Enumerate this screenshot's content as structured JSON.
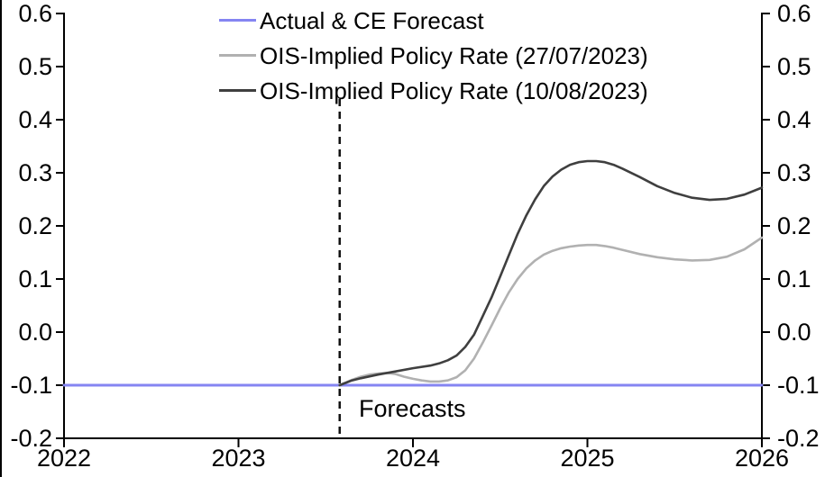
{
  "chart_data": {
    "type": "line",
    "title": "",
    "xlabel": "",
    "ylabel": "",
    "xlim": [
      2022,
      2026
    ],
    "ylim": [
      -0.2,
      0.6
    ],
    "grid": false,
    "x_ticks": [
      "2022",
      "2023",
      "2024",
      "2025",
      "2026"
    ],
    "x_tick_values": [
      2022,
      2023,
      2024,
      2025,
      2026
    ],
    "y_ticks": [
      "0.6",
      "0.5",
      "0.4",
      "0.3",
      "0.2",
      "0.1",
      "0.0",
      "-0.1",
      "-0.2"
    ],
    "y_tick_values": [
      0.6,
      0.5,
      0.4,
      0.3,
      0.2,
      0.1,
      0.0,
      -0.1,
      -0.2
    ],
    "y_axis_mirrored_right": true,
    "annotation": {
      "label": "Forecasts",
      "x": 2023.58
    },
    "forecast_line": {
      "style": "dashed",
      "x": 2023.58
    },
    "series": [
      {
        "name": "Actual & CE Forecast",
        "color": "#8585f2",
        "width": 3,
        "points": [
          [
            2022.0,
            -0.1
          ],
          [
            2026.0,
            -0.1
          ]
        ]
      },
      {
        "name": "OIS-Implied Policy Rate (27/07/2023)",
        "color": "#b1b1b1",
        "width": 2.6,
        "points": [
          [
            2023.58,
            -0.1
          ],
          [
            2023.65,
            -0.09
          ],
          [
            2023.7,
            -0.084
          ],
          [
            2023.75,
            -0.08
          ],
          [
            2023.8,
            -0.078
          ],
          [
            2023.85,
            -0.077
          ],
          [
            2023.9,
            -0.079
          ],
          [
            2023.95,
            -0.084
          ],
          [
            2024.0,
            -0.088
          ],
          [
            2024.05,
            -0.091
          ],
          [
            2024.1,
            -0.093
          ],
          [
            2024.15,
            -0.093
          ],
          [
            2024.2,
            -0.091
          ],
          [
            2024.25,
            -0.085
          ],
          [
            2024.3,
            -0.072
          ],
          [
            2024.35,
            -0.05
          ],
          [
            2024.4,
            -0.02
          ],
          [
            2024.45,
            0.012
          ],
          [
            2024.5,
            0.045
          ],
          [
            2024.55,
            0.075
          ],
          [
            2024.6,
            0.1
          ],
          [
            2024.65,
            0.12
          ],
          [
            2024.7,
            0.135
          ],
          [
            2024.75,
            0.146
          ],
          [
            2024.8,
            0.153
          ],
          [
            2024.85,
            0.158
          ],
          [
            2024.9,
            0.161
          ],
          [
            2024.95,
            0.163
          ],
          [
            2025.0,
            0.164
          ],
          [
            2025.05,
            0.164
          ],
          [
            2025.1,
            0.162
          ],
          [
            2025.15,
            0.159
          ],
          [
            2025.2,
            0.155
          ],
          [
            2025.3,
            0.147
          ],
          [
            2025.4,
            0.141
          ],
          [
            2025.5,
            0.137
          ],
          [
            2025.6,
            0.135
          ],
          [
            2025.7,
            0.136
          ],
          [
            2025.8,
            0.142
          ],
          [
            2025.9,
            0.156
          ],
          [
            2026.0,
            0.178
          ]
        ]
      },
      {
        "name": "OIS-Implied Policy Rate (10/08/2023)",
        "color": "#3f3f3f",
        "width": 2.6,
        "points": [
          [
            2023.58,
            -0.1
          ],
          [
            2023.65,
            -0.091
          ],
          [
            2023.7,
            -0.087
          ],
          [
            2023.8,
            -0.08
          ],
          [
            2023.9,
            -0.074
          ],
          [
            2024.0,
            -0.068
          ],
          [
            2024.1,
            -0.063
          ],
          [
            2024.15,
            -0.059
          ],
          [
            2024.2,
            -0.053
          ],
          [
            2024.25,
            -0.044
          ],
          [
            2024.3,
            -0.028
          ],
          [
            2024.35,
            -0.005
          ],
          [
            2024.4,
            0.03
          ],
          [
            2024.45,
            0.065
          ],
          [
            2024.5,
            0.105
          ],
          [
            2024.55,
            0.145
          ],
          [
            2024.6,
            0.185
          ],
          [
            2024.65,
            0.22
          ],
          [
            2024.7,
            0.25
          ],
          [
            2024.75,
            0.275
          ],
          [
            2024.8,
            0.293
          ],
          [
            2024.85,
            0.306
          ],
          [
            2024.9,
            0.315
          ],
          [
            2024.95,
            0.32
          ],
          [
            2025.0,
            0.322
          ],
          [
            2025.05,
            0.322
          ],
          [
            2025.1,
            0.32
          ],
          [
            2025.15,
            0.315
          ],
          [
            2025.2,
            0.308
          ],
          [
            2025.3,
            0.292
          ],
          [
            2025.4,
            0.275
          ],
          [
            2025.5,
            0.262
          ],
          [
            2025.6,
            0.253
          ],
          [
            2025.7,
            0.249
          ],
          [
            2025.8,
            0.251
          ],
          [
            2025.9,
            0.259
          ],
          [
            2026.0,
            0.272
          ]
        ]
      }
    ]
  },
  "legend": {
    "items": [
      {
        "label": "Actual & CE Forecast"
      },
      {
        "label": "OIS-Implied Policy Rate (27/07/2023)"
      },
      {
        "label": "OIS-Implied Policy Rate (10/08/2023)"
      }
    ]
  }
}
